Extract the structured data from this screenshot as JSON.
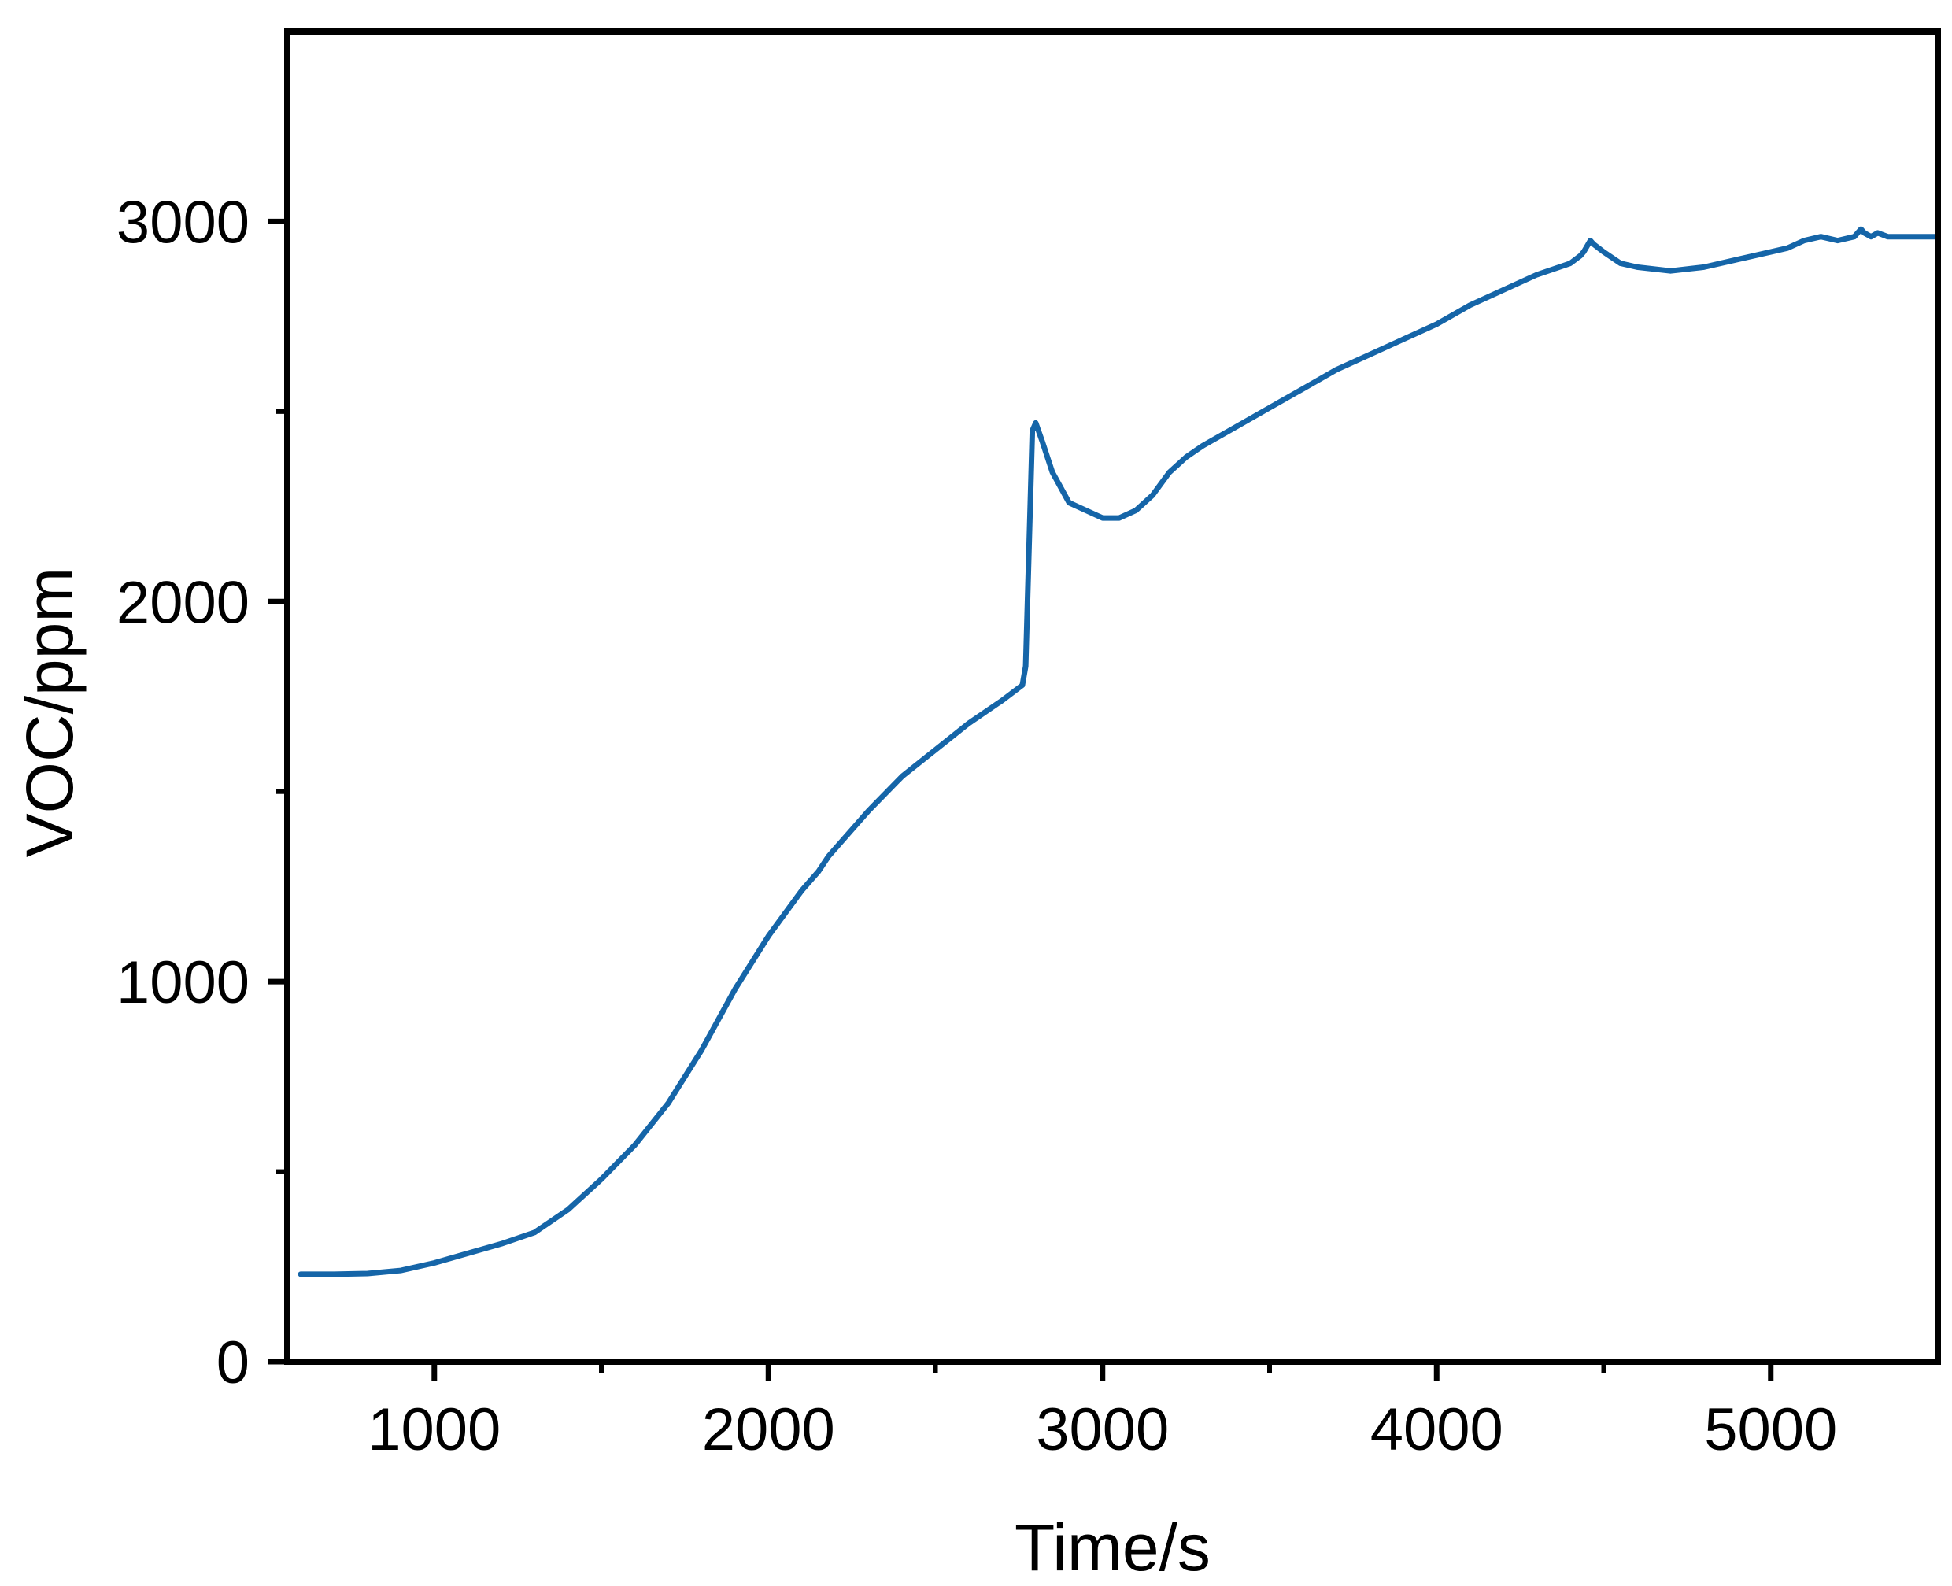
{
  "chart_data": {
    "type": "line",
    "title": "",
    "xlabel": "Time/s",
    "ylabel": "VOC/ppm",
    "xlim": [
      560,
      5500
    ],
    "ylim": [
      0,
      3500
    ],
    "x_ticks_major": [
      1000,
      2000,
      3000,
      4000,
      5000
    ],
    "x_tick_labels": [
      "1000",
      "2000",
      "3000",
      "4000",
      "5000"
    ],
    "x_ticks_minor": [
      1500,
      2500,
      3500,
      4500
    ],
    "y_ticks_major": [
      0,
      1000,
      2000,
      3000
    ],
    "y_tick_labels": [
      "0",
      "1000",
      "2000",
      "3000"
    ],
    "y_ticks_minor": [
      500,
      1500,
      2500
    ],
    "grid": false,
    "legend": "none",
    "line_color": "#1565a8",
    "series": [
      {
        "x": [
          600,
          700,
          800,
          900,
          1000,
          1100,
          1200,
          1300,
          1400,
          1500,
          1600,
          1700,
          1800,
          1900,
          2000,
          2100,
          2150,
          2180,
          2250,
          2300,
          2400,
          2500,
          2600,
          2700,
          2760,
          2770,
          2790,
          2800,
          2820,
          2850,
          2900,
          3000,
          3050,
          3100,
          3150,
          3200,
          3250,
          3300,
          3400,
          3500,
          3600,
          3700,
          3800,
          3900,
          4000,
          4100,
          4200,
          4300,
          4400,
          4430,
          4440,
          4460,
          4470,
          4500,
          4550,
          4600,
          4700,
          4800,
          4900,
          5000,
          5050,
          5100,
          5150,
          5200,
          5250,
          5270,
          5280,
          5300,
          5320,
          5350,
          5400,
          5450,
          5500
        ],
        "values": [
          230,
          230,
          232,
          240,
          260,
          285,
          310,
          340,
          400,
          480,
          570,
          680,
          820,
          980,
          1120,
          1240,
          1290,
          1330,
          1400,
          1450,
          1540,
          1610,
          1680,
          1740,
          1780,
          1830,
          2450,
          2470,
          2420,
          2340,
          2260,
          2220,
          2220,
          2240,
          2280,
          2340,
          2380,
          2410,
          2460,
          2510,
          2560,
          2610,
          2650,
          2690,
          2730,
          2780,
          2820,
          2860,
          2890,
          2910,
          2920,
          2950,
          2940,
          2920,
          2890,
          2880,
          2870,
          2880,
          2900,
          2920,
          2930,
          2950,
          2960,
          2950,
          2960,
          2980,
          2970,
          2960,
          2970,
          2960,
          2960,
          2960,
          2960
        ]
      }
    ]
  }
}
